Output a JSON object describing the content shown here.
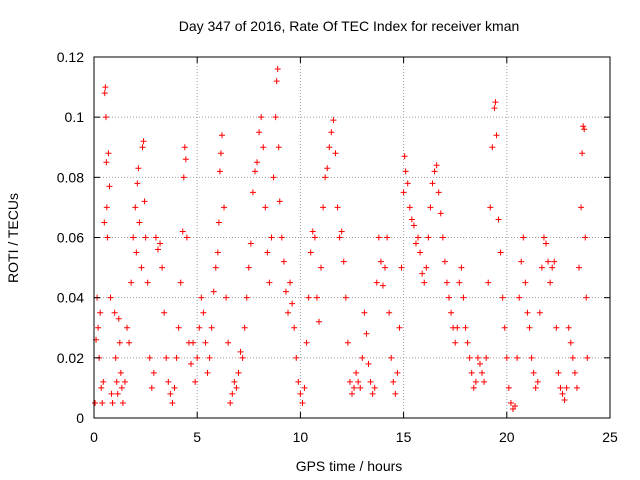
{
  "chart_data": {
    "type": "scatter",
    "title": "Day 347 of 2016, Rate Of TEC Index for receiver kman",
    "xlabel": "GPS time / hours",
    "ylabel": "ROTI / TECUs",
    "xlim": [
      0,
      25
    ],
    "ylim": [
      0,
      0.12
    ],
    "xticks": [
      0,
      5,
      10,
      15,
      20,
      25
    ],
    "yticks": [
      0,
      0.02,
      0.04,
      0.06,
      0.08,
      0.1,
      0.12
    ],
    "xtick_labels": [
      "0",
      "5",
      "10",
      "15",
      "20",
      "25"
    ],
    "ytick_labels": [
      "0",
      "0.02",
      "0.04",
      "0.06",
      "0.08",
      "0.1",
      "0.12"
    ],
    "grid": true,
    "marker": "+",
    "marker_color": "#ff0000",
    "series": [
      {
        "points": [
          [
            0.05,
            0.005
          ],
          [
            0.1,
            0.026
          ],
          [
            0.15,
            0.04
          ],
          [
            0.2,
            0.03
          ],
          [
            0.25,
            0.02
          ],
          [
            0.3,
            0.035
          ],
          [
            0.35,
            0.01
          ],
          [
            0.4,
            0.005
          ],
          [
            0.45,
            0.012
          ],
          [
            0.5,
            0.065
          ],
          [
            0.52,
            0.108
          ],
          [
            0.55,
            0.11
          ],
          [
            0.58,
            0.1
          ],
          [
            0.6,
            0.085
          ],
          [
            0.62,
            0.07
          ],
          [
            0.65,
            0.06
          ],
          [
            0.7,
            0.088
          ],
          [
            0.75,
            0.077
          ],
          [
            0.8,
            0.04
          ],
          [
            0.85,
            0.008
          ],
          [
            0.9,
            0.005
          ],
          [
            1.0,
            0.035
          ],
          [
            1.05,
            0.02
          ],
          [
            1.1,
            0.012
          ],
          [
            1.15,
            0.008
          ],
          [
            1.2,
            0.033
          ],
          [
            1.25,
            0.025
          ],
          [
            1.3,
            0.015
          ],
          [
            1.35,
            0.01
          ],
          [
            1.4,
            0.005
          ],
          [
            1.5,
            0.012
          ],
          [
            1.6,
            0.03
          ],
          [
            1.7,
            0.025
          ],
          [
            1.8,
            0.045
          ],
          [
            1.9,
            0.06
          ],
          [
            2.0,
            0.07
          ],
          [
            2.05,
            0.055
          ],
          [
            2.1,
            0.078
          ],
          [
            2.15,
            0.083
          ],
          [
            2.2,
            0.065
          ],
          [
            2.3,
            0.05
          ],
          [
            2.35,
            0.09
          ],
          [
            2.4,
            0.092
          ],
          [
            2.45,
            0.072
          ],
          [
            2.5,
            0.06
          ],
          [
            2.6,
            0.045
          ],
          [
            2.7,
            0.02
          ],
          [
            2.8,
            0.01
          ],
          [
            2.9,
            0.015
          ],
          [
            3.0,
            0.06
          ],
          [
            3.1,
            0.056
          ],
          [
            3.2,
            0.058
          ],
          [
            3.3,
            0.05
          ],
          [
            3.4,
            0.035
          ],
          [
            3.5,
            0.02
          ],
          [
            3.6,
            0.012
          ],
          [
            3.7,
            0.008
          ],
          [
            3.8,
            0.005
          ],
          [
            3.9,
            0.01
          ],
          [
            4.0,
            0.02
          ],
          [
            4.1,
            0.03
          ],
          [
            4.2,
            0.045
          ],
          [
            4.3,
            0.062
          ],
          [
            4.35,
            0.08
          ],
          [
            4.4,
            0.09
          ],
          [
            4.45,
            0.086
          ],
          [
            4.5,
            0.06
          ],
          [
            4.6,
            0.025
          ],
          [
            4.7,
            0.018
          ],
          [
            4.8,
            0.025
          ],
          [
            4.9,
            0.012
          ],
          [
            5.0,
            0.02
          ],
          [
            5.1,
            0.03
          ],
          [
            5.2,
            0.04
          ],
          [
            5.3,
            0.035
          ],
          [
            5.4,
            0.025
          ],
          [
            5.5,
            0.015
          ],
          [
            5.6,
            0.02
          ],
          [
            5.7,
            0.03
          ],
          [
            5.8,
            0.042
          ],
          [
            5.9,
            0.05
          ],
          [
            6.0,
            0.055
          ],
          [
            6.05,
            0.065
          ],
          [
            6.1,
            0.082
          ],
          [
            6.15,
            0.088
          ],
          [
            6.2,
            0.094
          ],
          [
            6.3,
            0.07
          ],
          [
            6.4,
            0.04
          ],
          [
            6.5,
            0.025
          ],
          [
            6.6,
            0.005
          ],
          [
            6.7,
            0.008
          ],
          [
            6.8,
            0.012
          ],
          [
            6.9,
            0.01
          ],
          [
            7.0,
            0.015
          ],
          [
            7.1,
            0.022
          ],
          [
            7.2,
            0.02
          ],
          [
            7.3,
            0.03
          ],
          [
            7.4,
            0.04
          ],
          [
            7.5,
            0.05
          ],
          [
            7.6,
            0.058
          ],
          [
            7.7,
            0.075
          ],
          [
            7.8,
            0.082
          ],
          [
            7.9,
            0.085
          ],
          [
            8.0,
            0.095
          ],
          [
            8.1,
            0.1
          ],
          [
            8.2,
            0.09
          ],
          [
            8.3,
            0.07
          ],
          [
            8.4,
            0.055
          ],
          [
            8.5,
            0.045
          ],
          [
            8.6,
            0.06
          ],
          [
            8.7,
            0.08
          ],
          [
            8.8,
            0.1
          ],
          [
            8.85,
            0.112
          ],
          [
            8.9,
            0.116
          ],
          [
            8.95,
            0.09
          ],
          [
            9.0,
            0.072
          ],
          [
            9.1,
            0.06
          ],
          [
            9.2,
            0.052
          ],
          [
            9.3,
            0.042
          ],
          [
            9.4,
            0.035
          ],
          [
            9.5,
            0.045
          ],
          [
            9.6,
            0.038
          ],
          [
            9.7,
            0.03
          ],
          [
            9.8,
            0.02
          ],
          [
            9.9,
            0.012
          ],
          [
            10.0,
            0.008
          ],
          [
            10.1,
            0.005
          ],
          [
            10.2,
            0.01
          ],
          [
            10.3,
            0.025
          ],
          [
            10.4,
            0.04
          ],
          [
            10.5,
            0.055
          ],
          [
            10.6,
            0.062
          ],
          [
            10.7,
            0.06
          ],
          [
            10.8,
            0.04
          ],
          [
            10.9,
            0.032
          ],
          [
            11.0,
            0.05
          ],
          [
            11.1,
            0.07
          ],
          [
            11.2,
            0.08
          ],
          [
            11.3,
            0.083
          ],
          [
            11.4,
            0.09
          ],
          [
            11.5,
            0.095
          ],
          [
            11.6,
            0.099
          ],
          [
            11.7,
            0.088
          ],
          [
            11.8,
            0.07
          ],
          [
            11.9,
            0.06
          ],
          [
            12.0,
            0.062
          ],
          [
            12.1,
            0.052
          ],
          [
            12.2,
            0.04
          ],
          [
            12.3,
            0.025
          ],
          [
            12.4,
            0.012
          ],
          [
            12.5,
            0.008
          ],
          [
            12.6,
            0.01
          ],
          [
            12.7,
            0.015
          ],
          [
            12.8,
            0.012
          ],
          [
            12.9,
            0.01
          ],
          [
            13.0,
            0.02
          ],
          [
            13.1,
            0.035
          ],
          [
            13.2,
            0.028
          ],
          [
            13.3,
            0.018
          ],
          [
            13.4,
            0.012
          ],
          [
            13.5,
            0.008
          ],
          [
            13.6,
            0.01
          ],
          [
            13.7,
            0.045
          ],
          [
            13.8,
            0.06
          ],
          [
            13.9,
            0.052
          ],
          [
            14.0,
            0.044
          ],
          [
            14.1,
            0.05
          ],
          [
            14.2,
            0.06
          ],
          [
            14.3,
            0.035
          ],
          [
            14.4,
            0.02
          ],
          [
            14.5,
            0.012
          ],
          [
            14.6,
            0.008
          ],
          [
            14.7,
            0.015
          ],
          [
            14.8,
            0.03
          ],
          [
            14.9,
            0.05
          ],
          [
            15.0,
            0.075
          ],
          [
            15.05,
            0.087
          ],
          [
            15.1,
            0.082
          ],
          [
            15.2,
            0.078
          ],
          [
            15.3,
            0.07
          ],
          [
            15.4,
            0.066
          ],
          [
            15.5,
            0.064
          ],
          [
            15.6,
            0.058
          ],
          [
            15.7,
            0.06
          ],
          [
            15.8,
            0.055
          ],
          [
            15.9,
            0.048
          ],
          [
            16.0,
            0.045
          ],
          [
            16.1,
            0.05
          ],
          [
            16.2,
            0.06
          ],
          [
            16.3,
            0.07
          ],
          [
            16.4,
            0.078
          ],
          [
            16.5,
            0.082
          ],
          [
            16.6,
            0.084
          ],
          [
            16.7,
            0.075
          ],
          [
            16.8,
            0.068
          ],
          [
            16.9,
            0.06
          ],
          [
            17.0,
            0.052
          ],
          [
            17.1,
            0.045
          ],
          [
            17.2,
            0.04
          ],
          [
            17.3,
            0.035
          ],
          [
            17.4,
            0.03
          ],
          [
            17.5,
            0.025
          ],
          [
            17.6,
            0.03
          ],
          [
            17.7,
            0.045
          ],
          [
            17.8,
            0.05
          ],
          [
            17.9,
            0.04
          ],
          [
            18.0,
            0.03
          ],
          [
            18.1,
            0.025
          ],
          [
            18.2,
            0.02
          ],
          [
            18.3,
            0.015
          ],
          [
            18.4,
            0.01
          ],
          [
            18.5,
            0.012
          ],
          [
            18.6,
            0.02
          ],
          [
            18.7,
            0.018
          ],
          [
            18.8,
            0.015
          ],
          [
            18.9,
            0.012
          ],
          [
            19.0,
            0.02
          ],
          [
            19.1,
            0.045
          ],
          [
            19.2,
            0.07
          ],
          [
            19.3,
            0.09
          ],
          [
            19.4,
            0.103
          ],
          [
            19.45,
            0.105
          ],
          [
            19.5,
            0.094
          ],
          [
            19.6,
            0.066
          ],
          [
            19.7,
            0.055
          ],
          [
            19.8,
            0.04
          ],
          [
            19.9,
            0.03
          ],
          [
            20.0,
            0.02
          ],
          [
            20.1,
            0.01
          ],
          [
            20.2,
            0.005
          ],
          [
            20.3,
            0.003
          ],
          [
            20.4,
            0.004
          ],
          [
            20.5,
            0.02
          ],
          [
            20.6,
            0.04
          ],
          [
            20.7,
            0.052
          ],
          [
            20.8,
            0.06
          ],
          [
            20.9,
            0.045
          ],
          [
            21.0,
            0.035
          ],
          [
            21.1,
            0.03
          ],
          [
            21.2,
            0.02
          ],
          [
            21.3,
            0.015
          ],
          [
            21.4,
            0.01
          ],
          [
            21.5,
            0.012
          ],
          [
            21.6,
            0.035
          ],
          [
            21.7,
            0.05
          ],
          [
            21.8,
            0.06
          ],
          [
            21.9,
            0.058
          ],
          [
            22.0,
            0.052
          ],
          [
            22.1,
            0.045
          ],
          [
            22.2,
            0.05
          ],
          [
            22.3,
            0.052
          ],
          [
            22.4,
            0.03
          ],
          [
            22.5,
            0.015
          ],
          [
            22.6,
            0.01
          ],
          [
            22.7,
            0.008
          ],
          [
            22.8,
            0.006
          ],
          [
            22.9,
            0.01
          ],
          [
            23.0,
            0.03
          ],
          [
            23.1,
            0.025
          ],
          [
            23.2,
            0.02
          ],
          [
            23.3,
            0.015
          ],
          [
            23.4,
            0.01
          ],
          [
            23.5,
            0.05
          ],
          [
            23.6,
            0.07
          ],
          [
            23.65,
            0.088
          ],
          [
            23.7,
            0.097
          ],
          [
            23.75,
            0.096
          ],
          [
            23.8,
            0.06
          ],
          [
            23.85,
            0.04
          ],
          [
            23.9,
            0.02
          ]
        ]
      }
    ]
  }
}
